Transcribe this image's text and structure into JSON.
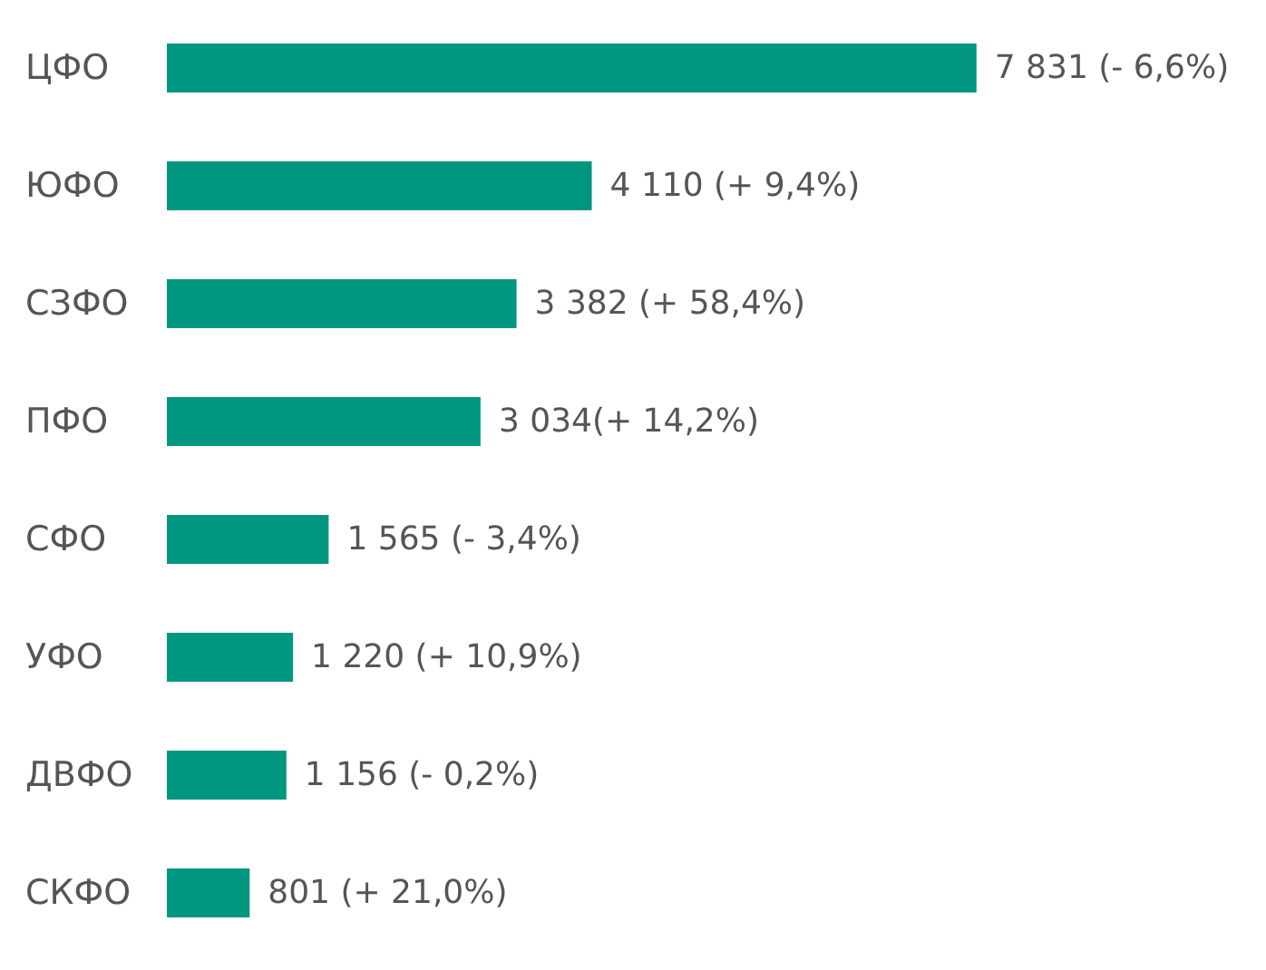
{
  "chart_data": {
    "type": "bar",
    "orientation": "horizontal",
    "categories": [
      "ЦФО",
      "ЮФО",
      "СЗФО",
      "ПФО",
      "СФО",
      "УФО",
      "ДВФО",
      "СКФО"
    ],
    "values": [
      7831,
      4110,
      3382,
      3034,
      1565,
      1220,
      1156,
      801
    ],
    "value_labels": [
      "7 831 (- 6,6%)",
      "4 110 (+ 9,4%)",
      "3 382 (+ 58,4%)",
      "3 034(+ 14,2%)",
      "1 565 (- 3,4%)",
      "1 220 (+ 10,9%)",
      "1 156 (- 0,2%)",
      "801 (+ 21,0%)"
    ],
    "color": "#009781"
  }
}
